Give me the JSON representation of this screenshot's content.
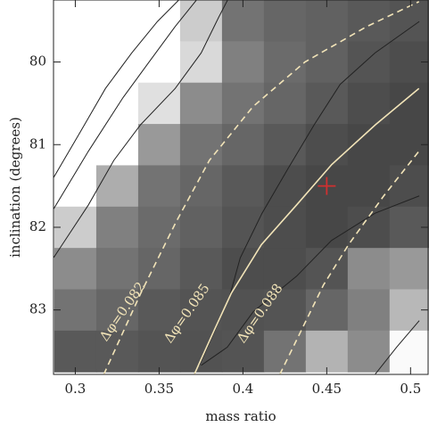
{
  "chart_data": {
    "type": "heatmap",
    "xlabel": "mass ratio",
    "ylabel": "inclination (degrees)",
    "xlim": [
      0.287,
      0.511
    ],
    "ylim": [
      83.78,
      79.25
    ],
    "xticks": [
      0.3,
      0.35,
      0.4,
      0.45,
      0.5
    ],
    "yticks": [
      80,
      81,
      82,
      83
    ],
    "x": [
      0.3,
      0.325,
      0.35,
      0.375,
      0.4,
      0.425,
      0.45,
      0.475,
      0.5
    ],
    "y": [
      79.5,
      80.0,
      80.5,
      81.0,
      81.5,
      82.0,
      82.5,
      83.0,
      83.5
    ],
    "z": [
      [
        1,
        1,
        1,
        0.8,
        0.45,
        0.4,
        0.38,
        0.35,
        0.33
      ],
      [
        1,
        1,
        1,
        0.85,
        0.5,
        0.42,
        0.38,
        0.33,
        0.3
      ],
      [
        1,
        1,
        0.88,
        0.55,
        0.45,
        0.4,
        0.35,
        0.3,
        0.28
      ],
      [
        1,
        1,
        0.6,
        0.45,
        0.4,
        0.35,
        0.3,
        0.28,
        0.28
      ],
      [
        1,
        0.68,
        0.45,
        0.4,
        0.35,
        0.3,
        0.28,
        0.28,
        0.3
      ],
      [
        0.8,
        0.5,
        0.42,
        0.38,
        0.33,
        0.3,
        0.28,
        0.3,
        0.35
      ],
      [
        0.55,
        0.45,
        0.4,
        0.35,
        0.3,
        0.3,
        0.33,
        0.55,
        0.6
      ],
      [
        0.45,
        0.4,
        0.35,
        0.33,
        0.32,
        0.33,
        0.4,
        0.5,
        0.72
      ],
      [
        0.35,
        0.35,
        0.33,
        0.32,
        0.33,
        0.45,
        0.7,
        0.55,
        0.98
      ]
    ],
    "contours": [
      {
        "color": "#222222",
        "dash": false,
        "x": [
          0.287,
          0.3026,
          0.318,
          0.3337,
          0.349,
          0.362
        ],
        "y": [
          81.4,
          80.86,
          80.32,
          79.89,
          79.51,
          79.245
        ]
      },
      {
        "color": "#222222",
        "dash": false,
        "x": [
          0.287,
          0.3078,
          0.3285,
          0.344,
          0.3596,
          0.3725
        ],
        "y": [
          81.78,
          81.08,
          80.43,
          80.0,
          79.57,
          79.245
        ]
      },
      {
        "color": "#222222",
        "dash": false,
        "x": [
          0.287,
          0.3078,
          0.323,
          0.3389,
          0.3596,
          0.3751,
          0.3855,
          0.391
        ],
        "y": [
          82.37,
          81.73,
          81.19,
          80.76,
          80.32,
          79.89,
          79.46,
          79.245
        ]
      },
      {
        "color": "#222222",
        "dash": false,
        "x": [
          0.374,
          0.3917,
          0.3984,
          0.4114,
          0.4269,
          0.4425,
          0.458,
          0.4788,
          0.5052
        ],
        "y": [
          83.67,
          82.86,
          82.37,
          81.83,
          81.29,
          80.76,
          80.27,
          79.89,
          79.51
        ]
      },
      {
        "color": "#222222",
        "dash": false,
        "x": [
          0.3751,
          0.3907,
          0.4062,
          0.4321,
          0.4528,
          0.4788,
          0.5052
        ],
        "y": [
          83.67,
          83.45,
          83.02,
          82.59,
          82.16,
          81.83,
          81.62
        ]
      },
      {
        "color": "#222222",
        "dash": false,
        "x": [
          0.4788,
          0.4917,
          0.5052
        ],
        "y": [
          83.78,
          83.45,
          83.13
        ]
      },
      {
        "label": "Δφ=0.082",
        "color": "#f2e4b8",
        "dash": true,
        "x": [
          0.317,
          0.339,
          0.36,
          0.38,
          0.406,
          0.437,
          0.474,
          0.505
        ],
        "y": [
          83.78,
          82.8,
          81.94,
          81.19,
          80.54,
          80.0,
          79.57,
          79.27
        ]
      },
      {
        "label": "Δφ=0.085",
        "color": "#f2e4b8",
        "dash": false,
        "x": [
          0.371,
          0.383,
          0.393,
          0.411,
          0.432,
          0.453,
          0.479,
          0.505
        ],
        "y": [
          83.78,
          83.24,
          82.8,
          82.21,
          81.73,
          81.24,
          80.76,
          80.32
        ]
      },
      {
        "label": "Δφ=0.088",
        "color": "#f2e4b8",
        "dash": true,
        "x": [
          0.422,
          0.435,
          0.448,
          0.463,
          0.484,
          0.505
        ],
        "y": [
          83.78,
          83.24,
          82.7,
          82.21,
          81.62,
          81.08
        ]
      }
    ],
    "marker": {
      "x": 0.45,
      "y": 81.5,
      "color": "#d03030"
    }
  }
}
